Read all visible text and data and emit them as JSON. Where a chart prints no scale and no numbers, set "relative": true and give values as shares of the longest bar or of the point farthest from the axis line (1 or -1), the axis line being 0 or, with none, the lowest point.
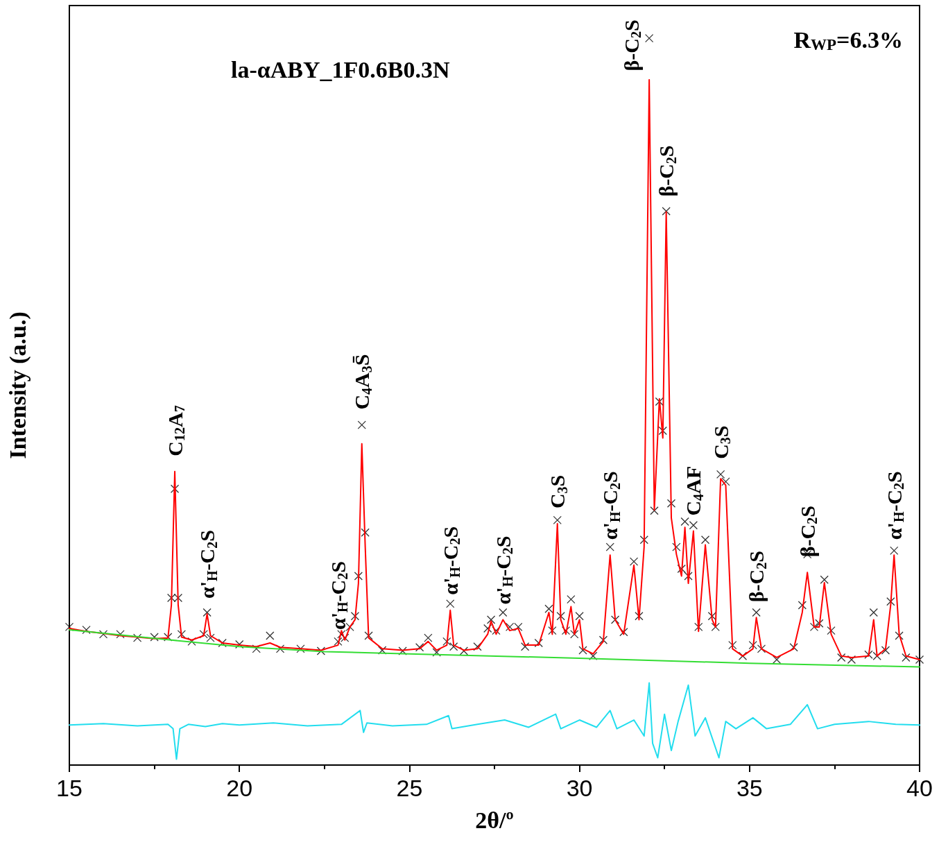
{
  "chart_data": {
    "type": "line",
    "title": "la-αABY_1F0.6B0.3N",
    "xlabel": "2θ/º",
    "ylabel": "Intensity (a.u.)",
    "relative": true,
    "xlim": [
      15,
      40
    ],
    "xticks": [
      15,
      20,
      25,
      30,
      35,
      40
    ],
    "tick_labels": "x",
    "grid": false,
    "annotations": [
      "R$_{WP}$=6.3%",
      {
        "text": "C$_{12}$A$_{7}$",
        "x": 18.1,
        "y": 0.404
      },
      {
        "text": "α'$_{H}$-C$_{2}$S",
        "x": 19.05,
        "y": 0.208
      },
      {
        "text": "α'$_{H}$-C$_{2}$S",
        "x": 22.9,
        "y": 0.165
      },
      {
        "text": "C$_{4}$A$_{3}$S̄",
        "x": 23.6,
        "y": 0.468
      },
      {
        "text": "α'$_{H}$-C$_{2}$S",
        "x": 26.2,
        "y": 0.213
      },
      {
        "text": "α'$_{H}$-C$_{2}$S",
        "x": 27.75,
        "y": 0.2
      },
      {
        "text": "C$_{3}$S",
        "x": 29.35,
        "y": 0.332
      },
      {
        "text": "α'$_{H}$-C$_{2}$S",
        "x": 30.9,
        "y": 0.289
      },
      {
        "text": "β-C$_{2}$S",
        "x": 32.05,
        "y": 1.0
      },
      {
        "text": "β-C$_{2}$S",
        "x": 32.55,
        "y": 0.761
      },
      {
        "text": "C$_{4}$AF",
        "x": 33.35,
        "y": 0.322
      },
      {
        "text": "C$_{3}$S",
        "x": 34.15,
        "y": 0.4
      },
      {
        "text": "β-C$_{2}$S",
        "x": 35.2,
        "y": 0.203
      },
      {
        "text": "β-C$_{2}$S",
        "x": 36.7,
        "y": 0.265
      },
      {
        "text": "α'$_{H}$-C$_{2}$S",
        "x": 39.25,
        "y": 0.289
      }
    ],
    "series": [
      {
        "type": "scatter",
        "marker": "cross",
        "color": "#000000",
        "x": [
          15,
          15.5,
          16,
          16.5,
          17,
          17.5,
          17.9,
          18.0,
          18.1,
          18.2,
          18.3,
          18.6,
          18.95,
          19.05,
          19.15,
          19.5,
          20,
          20.5,
          20.9,
          21.2,
          21.8,
          22.4,
          22.9,
          23.0,
          23.1,
          23.25,
          23.4,
          23.5,
          23.6,
          23.7,
          23.8,
          24.2,
          24.8,
          25.3,
          25.55,
          25.8,
          26.1,
          26.2,
          26.3,
          26.6,
          27.0,
          27.3,
          27.4,
          27.55,
          27.75,
          27.95,
          28.2,
          28.4,
          28.8,
          29.1,
          29.2,
          29.35,
          29.45,
          29.6,
          29.75,
          29.85,
          30.0,
          30.1,
          30.4,
          30.7,
          30.9,
          31.05,
          31.3,
          31.6,
          31.75,
          31.9,
          32.05,
          32.2,
          32.35,
          32.45,
          32.55,
          32.7,
          32.85,
          33.0,
          33.1,
          33.2,
          33.35,
          33.5,
          33.7,
          33.9,
          34.0,
          34.15,
          34.3,
          34.5,
          34.8,
          35.1,
          35.2,
          35.35,
          35.8,
          36.3,
          36.55,
          36.7,
          36.9,
          37.05,
          37.2,
          37.4,
          37.7,
          38.0,
          38.5,
          38.65,
          38.75,
          39.0,
          39.15,
          39.25,
          39.4,
          39.6,
          40
        ],
        "values": [
          0.19,
          0.186,
          0.18,
          0.18,
          0.175,
          0.176,
          0.176,
          0.23,
          0.38,
          0.23,
          0.18,
          0.17,
          0.18,
          0.21,
          0.175,
          0.168,
          0.166,
          0.16,
          0.178,
          0.16,
          0.16,
          0.157,
          0.17,
          0.18,
          0.175,
          0.19,
          0.205,
          0.26,
          0.468,
          0.32,
          0.178,
          0.158,
          0.157,
          0.162,
          0.175,
          0.155,
          0.17,
          0.222,
          0.163,
          0.157,
          0.163,
          0.188,
          0.2,
          0.185,
          0.21,
          0.19,
          0.19,
          0.163,
          0.168,
          0.215,
          0.185,
          0.337,
          0.205,
          0.185,
          0.228,
          0.18,
          0.205,
          0.158,
          0.15,
          0.172,
          0.3,
          0.2,
          0.183,
          0.28,
          0.205,
          0.31,
          1.0,
          0.35,
          0.5,
          0.46,
          0.762,
          0.36,
          0.3,
          0.27,
          0.335,
          0.26,
          0.33,
          0.19,
          0.31,
          0.205,
          0.19,
          0.4,
          0.39,
          0.165,
          0.15,
          0.165,
          0.21,
          0.16,
          0.145,
          0.162,
          0.22,
          0.29,
          0.19,
          0.195,
          0.255,
          0.185,
          0.148,
          0.145,
          0.152,
          0.21,
          0.15,
          0.158,
          0.225,
          0.295,
          0.178,
          0.148,
          0.145
        ]
      },
      {
        "color": "#ff0000",
        "x": [
          15,
          15.5,
          16,
          16.5,
          17,
          17.5,
          17.9,
          18.0,
          18.1,
          18.2,
          18.3,
          18.6,
          18.95,
          19.05,
          19.15,
          19.5,
          20,
          20.5,
          20.9,
          21.2,
          21.8,
          22.4,
          22.9,
          23.0,
          23.1,
          23.25,
          23.4,
          23.5,
          23.6,
          23.7,
          23.8,
          24.2,
          24.8,
          25.3,
          25.55,
          25.8,
          26.1,
          26.2,
          26.3,
          26.6,
          27.0,
          27.3,
          27.4,
          27.55,
          27.75,
          27.95,
          28.2,
          28.4,
          28.8,
          29.1,
          29.2,
          29.35,
          29.45,
          29.6,
          29.75,
          29.85,
          30.0,
          30.1,
          30.4,
          30.7,
          30.9,
          31.05,
          31.3,
          31.6,
          31.75,
          31.9,
          32.05,
          32.2,
          32.35,
          32.45,
          32.55,
          32.7,
          32.85,
          33.0,
          33.1,
          33.2,
          33.35,
          33.5,
          33.7,
          33.9,
          34.0,
          34.15,
          34.3,
          34.5,
          34.8,
          35.1,
          35.2,
          35.35,
          35.8,
          36.3,
          36.55,
          36.7,
          36.9,
          37.05,
          37.2,
          37.4,
          37.7,
          38.0,
          38.5,
          38.65,
          38.75,
          39.0,
          39.15,
          39.25,
          39.4,
          39.6,
          40
        ],
        "values": [
          0.188,
          0.184,
          0.181,
          0.178,
          0.176,
          0.174,
          0.175,
          0.22,
          0.404,
          0.22,
          0.176,
          0.172,
          0.178,
          0.208,
          0.178,
          0.168,
          0.165,
          0.163,
          0.168,
          0.162,
          0.16,
          0.158,
          0.165,
          0.185,
          0.172,
          0.19,
          0.2,
          0.25,
          0.442,
          0.3,
          0.175,
          0.16,
          0.158,
          0.16,
          0.17,
          0.158,
          0.165,
          0.213,
          0.165,
          0.158,
          0.16,
          0.18,
          0.198,
          0.18,
          0.2,
          0.185,
          0.188,
          0.165,
          0.165,
          0.21,
          0.18,
          0.332,
          0.2,
          0.18,
          0.218,
          0.18,
          0.2,
          0.16,
          0.153,
          0.17,
          0.289,
          0.2,
          0.18,
          0.275,
          0.2,
          0.3,
          0.943,
          0.351,
          0.504,
          0.45,
          0.761,
          0.34,
          0.29,
          0.26,
          0.327,
          0.25,
          0.322,
          0.184,
          0.303,
          0.2,
          0.19,
          0.394,
          0.385,
          0.16,
          0.15,
          0.16,
          0.203,
          0.16,
          0.148,
          0.16,
          0.21,
          0.265,
          0.19,
          0.19,
          0.251,
          0.18,
          0.15,
          0.148,
          0.15,
          0.2,
          0.15,
          0.16,
          0.22,
          0.289,
          0.18,
          0.15,
          0.145
        ]
      },
      {
        "color": "#33dd33",
        "x": [
          15,
          18,
          20,
          22.5,
          25,
          30,
          35,
          40
        ],
        "values": [
          0.186,
          0.172,
          0.163,
          0.156,
          0.153,
          0.147,
          0.14,
          0.135
        ]
      },
      {
        "color": "#22ddee",
        "x": [
          15,
          16,
          17,
          17.9,
          18.05,
          18.15,
          18.25,
          18.5,
          19,
          19.5,
          20,
          21,
          22,
          23,
          23.55,
          23.65,
          23.75,
          24.5,
          25.5,
          26.15,
          26.25,
          27,
          27.8,
          28.5,
          29.3,
          29.45,
          30,
          30.5,
          30.9,
          31.1,
          31.6,
          31.9,
          32.05,
          32.15,
          32.3,
          32.5,
          32.7,
          32.9,
          33.2,
          33.4,
          33.7,
          34.1,
          34.3,
          34.6,
          35.1,
          35.5,
          36.2,
          36.7,
          37,
          37.5,
          38.5,
          39.3,
          40
        ],
        "values": [
          0.055,
          0.057,
          0.054,
          0.056,
          0.05,
          0.008,
          0.05,
          0.056,
          0.053,
          0.057,
          0.055,
          0.058,
          0.054,
          0.056,
          0.075,
          0.045,
          0.058,
          0.054,
          0.056,
          0.068,
          0.05,
          0.056,
          0.062,
          0.052,
          0.07,
          0.05,
          0.062,
          0.052,
          0.075,
          0.05,
          0.062,
          0.04,
          0.113,
          0.03,
          0.01,
          0.07,
          0.02,
          0.06,
          0.11,
          0.04,
          0.065,
          0.01,
          0.06,
          0.05,
          0.065,
          0.05,
          0.056,
          0.083,
          0.05,
          0.056,
          0.06,
          0.056,
          0.055
        ]
      }
    ]
  }
}
